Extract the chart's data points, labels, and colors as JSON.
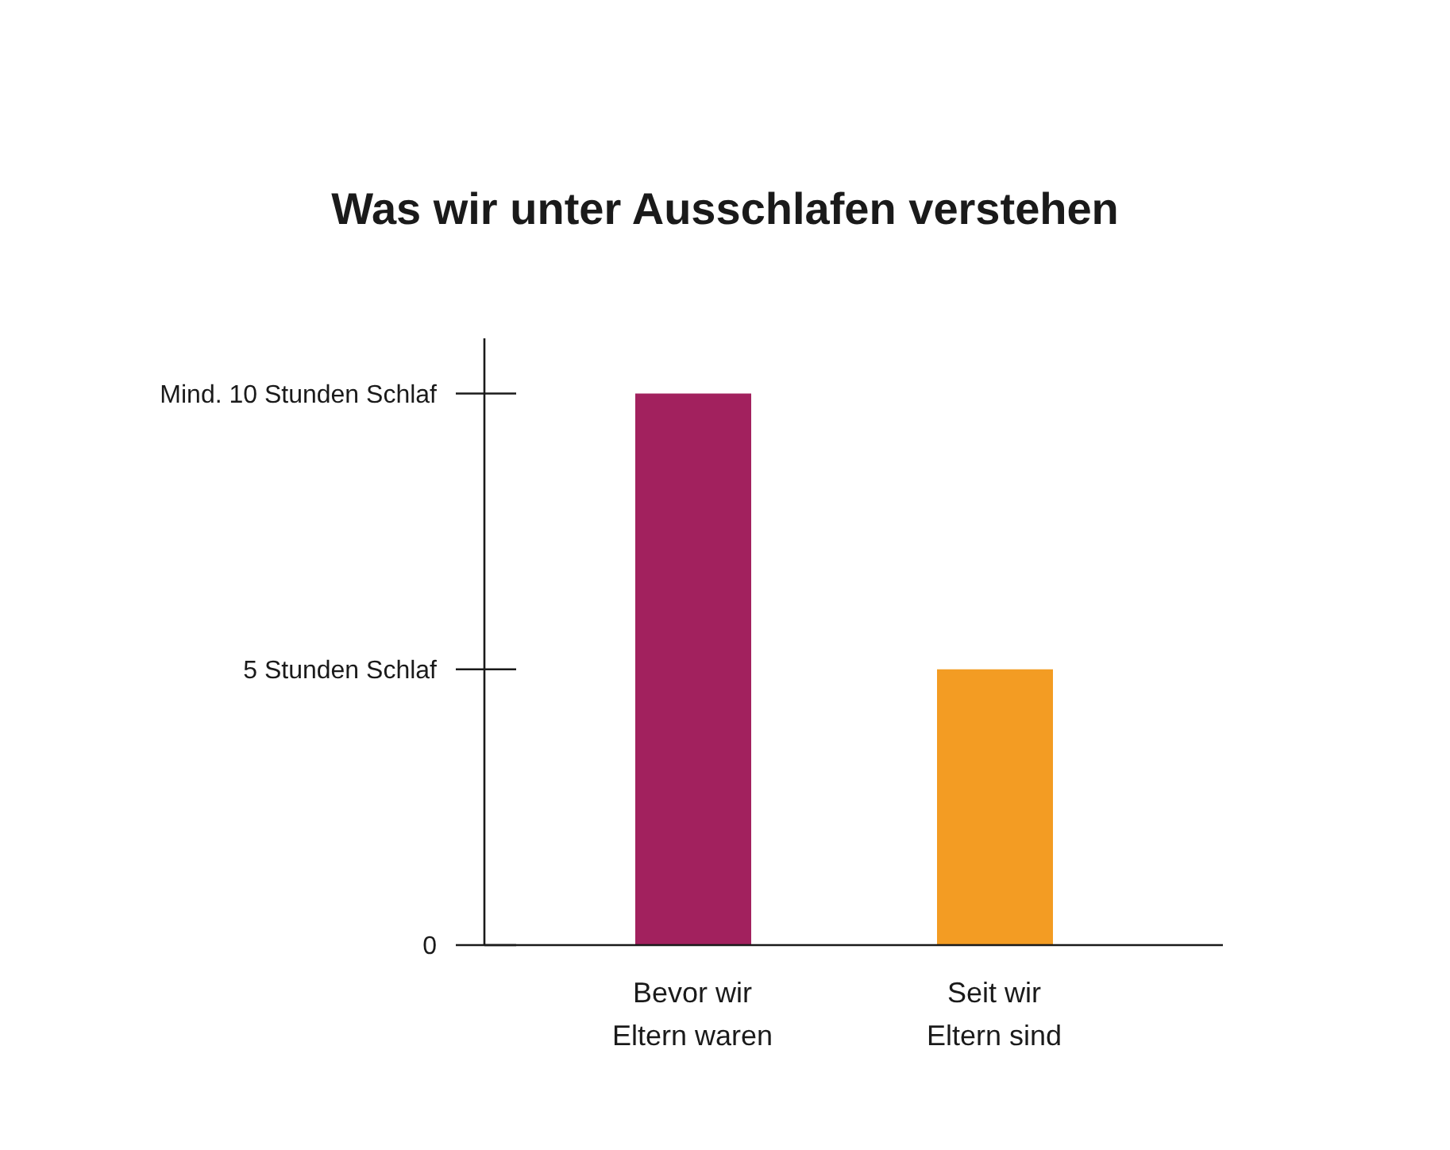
{
  "chart_data": {
    "type": "bar",
    "title": "Was wir unter Ausschlafen verstehen",
    "categories": [
      "Bevor wir\nEltern waren",
      "Seit wir\nEltern sind"
    ],
    "values": [
      10,
      5
    ],
    "colors": [
      "#a2215e",
      "#f39c23"
    ],
    "ylim": [
      0,
      11
    ],
    "yticks": [
      0,
      {
        "value": 5,
        "label": "5 Stunden Schlaf"
      },
      {
        "value": 10,
        "label": "Mind. 10 Stunden Schlaf"
      }
    ]
  }
}
